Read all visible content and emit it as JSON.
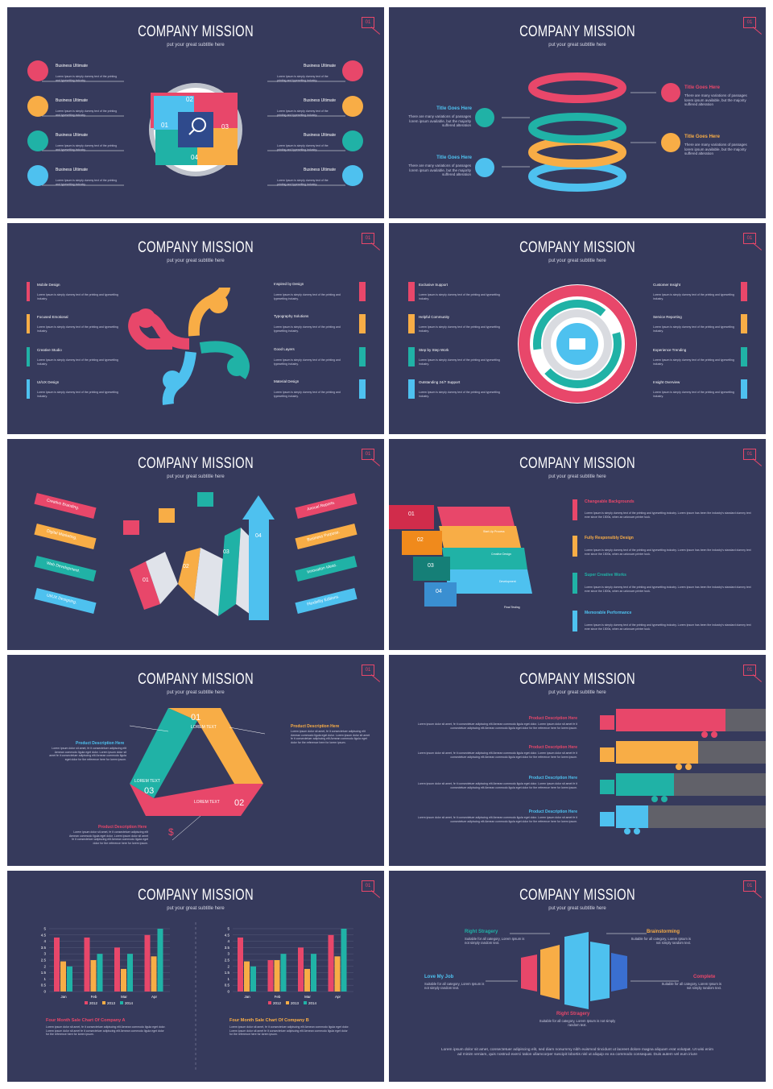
{
  "common": {
    "title": "COMPANY MISSION",
    "subtitle": "put your great subtitle here",
    "num": "01",
    "lorem_short": "Lorem Ipsum is simply dummy text of the printing and typesetting industry.",
    "lorem_alt": "There are many variations of passages lorem ipsum available, but the majority suffered alteration",
    "lorem_prod": "Lorem ipsum dolor sit amet, fe it consectetuer adipiscing elit Aenean commodo ligula eget dolor. Lorem ipsum dolor sit amet fe it consectetuer adipiscing elit Aenean commodo ligula eget dolor for the reference here for lorem ipsum.",
    "lorem_long": "Lorem Ipsum is simply dummy text of the printing and typesetting industry. Lorem Ipsum has been the industry's standard dummy text ever since the 1500s, when an unknown printer took."
  },
  "s1": {
    "left": [
      "Business Ultimate",
      "Business Ultimate",
      "Business Ultimate",
      "Business Ultimate"
    ],
    "right": [
      "Business Ultimate",
      "Business Ultimate",
      "Business Ultimate",
      "Business Ultimate"
    ],
    "puzzle": [
      "01",
      "02",
      "03",
      "04"
    ]
  },
  "s2": {
    "items": [
      "Title Goes Here",
      "Title Goes Here",
      "Title Goes Here",
      "Title Goes Here"
    ]
  },
  "s3": {
    "left": [
      "Mobile Design",
      "Focused Emotional",
      "Creative Studio",
      "UI/UX Design"
    ],
    "right": [
      "Inspired by Design",
      "Typography Solutions",
      "Good Layers",
      "Material Design"
    ]
  },
  "s4": {
    "left": [
      "Exclusive Support",
      "Helpful Community",
      "Step by Step Work",
      "Outstanding 24/7 Support"
    ],
    "right": [
      "Customer Insight",
      "Service Reporting",
      "Experience Trending",
      "Insight Overview"
    ]
  },
  "s5": {
    "left": [
      "Creative Branding.",
      "Digital Marketing.",
      "Web Development.",
      "UI/UX Designing."
    ],
    "right": [
      "Annual Reports.",
      "Business Purpose.",
      "Innovation Ideas.",
      "Flexibility Editions."
    ],
    "steps": [
      "01",
      "02",
      "03",
      "04"
    ]
  },
  "s6": {
    "steps": [
      "01",
      "02",
      "03",
      "04"
    ],
    "bars": [
      "Start-Up Process",
      "Creative Design",
      "Development",
      "Final Testing"
    ],
    "items": [
      "Changeable Backgrounds",
      "Fully Responsibly Design",
      "Super Creative Works",
      "Memorable Performance"
    ]
  },
  "s7": {
    "heads": [
      "Product Description Here",
      "Product Description Here",
      "Product Description Here"
    ],
    "tri": [
      {
        "num": "01",
        "txt": "LOREM TEXT"
      },
      {
        "num": "02",
        "txt": "LOREM TEXT"
      },
      {
        "num": "03",
        "txt": "LOREM TEXT"
      }
    ]
  },
  "s8": {
    "heads": [
      "Product Description Here",
      "Product Description Here",
      "Product Description Here",
      "Product Description Here"
    ]
  },
  "s9": {
    "captions": [
      "Four Month Sale Chart Of Company A",
      "Four Month Sale Chart Of Company B"
    ]
  },
  "s10": {
    "items": [
      {
        "head": "Right Stragery",
        "text": "Suitable for all category, Lorem Ipsum is not simply random text."
      },
      {
        "head": "Brainstorming",
        "text": "Suitable for all category, Lorem Ipsum is not simply random text."
      },
      {
        "head": "Love My Job",
        "text": "Suitable for all category, Lorem Ipsum is not simply random text."
      },
      {
        "head": "Complete",
        "text": "Suitable for all category, Lorem Ipsum is not simply random text."
      },
      {
        "head": "Right Stragery",
        "text": "Suitable for all category, Lorem Ipsum is not simply random text."
      }
    ],
    "footer": "Lorem ipsum dolor sit amet, consectetuer adipiscing elit, sed diam nonummy nibh euismod tincidunt ut laoreet dolore magna aliquam erat volutpat. Ut wisi enim ad minim veniam, quis nostrud exerci tation ullamcorper suscipit lobortis nisl ut aliquip ex ea commodo consequat. Duis autem vel eum iriure"
  },
  "chart_data": [
    {
      "type": "bar",
      "categories": [
        "Jan",
        "Feb",
        "Mar",
        "Apr"
      ],
      "ylim": [
        0,
        5
      ],
      "yticks": [
        "0",
        "0.5",
        "1",
        "1.5",
        "2",
        "2.5",
        "3",
        "3.5",
        "4",
        "4.5",
        "5"
      ],
      "series": [
        {
          "name": "2012",
          "values": [
            4.3,
            4.3,
            3.5,
            4.5
          ],
          "color": "#e8476a"
        },
        {
          "name": "2013",
          "values": [
            2.4,
            2.5,
            1.8,
            2.8
          ],
          "color": "#f8ad46"
        },
        {
          "name": "2014",
          "values": [
            2.0,
            3.0,
            3.0,
            5.0
          ],
          "color": "#20b2a6"
        }
      ]
    },
    {
      "type": "bar",
      "categories": [
        "Jan",
        "Feb",
        "Mar",
        "Apr"
      ],
      "ylim": [
        0,
        5
      ],
      "yticks": [
        "0",
        "0.5",
        "1",
        "1.5",
        "2",
        "2.5",
        "3",
        "3.5",
        "4",
        "4.5",
        "5"
      ],
      "series": [
        {
          "name": "2012",
          "values": [
            4.3,
            2.5,
            3.5,
            4.5
          ],
          "color": "#e8476a"
        },
        {
          "name": "2013",
          "values": [
            2.4,
            2.5,
            1.8,
            2.8
          ],
          "color": "#f8ad46"
        },
        {
          "name": "2014",
          "values": [
            2.0,
            3.0,
            3.0,
            5.0
          ],
          "color": "#20b2a6"
        }
      ]
    }
  ],
  "colors": {
    "bg": "#363a5c",
    "red": "#e8476a",
    "orange": "#f8ad46",
    "teal": "#20b2a6",
    "blue": "#4ec1ef"
  }
}
